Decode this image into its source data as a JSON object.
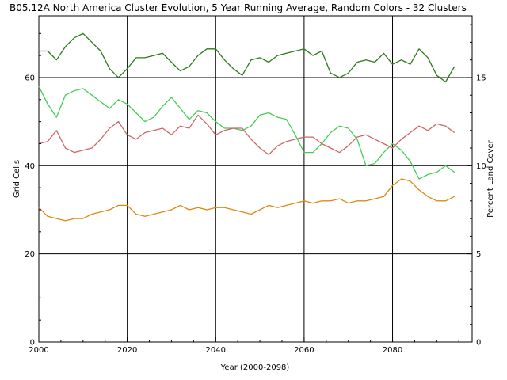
{
  "chart_data": {
    "type": "line",
    "title": "B05.12A North America Cluster Evolution, 5 Year Running Average, Random Colors - 32 Clusters",
    "xlabel": "Year (2000-2098)",
    "ylabel": "Grid Cells",
    "y2label": "Percent Land Cover",
    "xlim": [
      2000,
      2098
    ],
    "ylim": [
      0,
      74
    ],
    "y2lim": [
      0,
      18.5
    ],
    "xticks": [
      "2000",
      "2020",
      "2040",
      "2060",
      "2080"
    ],
    "yticks": [
      "0",
      "20",
      "40",
      "60"
    ],
    "y2ticks": [
      "0",
      "5",
      "10",
      "15"
    ],
    "grid": true,
    "colors": [
      "#2a7a1a",
      "#44cc55",
      "#cc6666",
      "#dd8811"
    ],
    "series": [
      {
        "color": "#2a7a1a",
        "x": [
          2000,
          2002,
          2004,
          2006,
          2008,
          2010,
          2012,
          2014,
          2016,
          2018,
          2020,
          2022,
          2024,
          2026,
          2028,
          2030,
          2032,
          2034,
          2036,
          2038,
          2040,
          2042,
          2044,
          2046,
          2048,
          2050,
          2052,
          2054,
          2056,
          2058,
          2060,
          2062,
          2064,
          2066,
          2068,
          2070,
          2072,
          2074,
          2076,
          2078,
          2080,
          2082,
          2084,
          2086,
          2088,
          2090,
          2092,
          2094
        ],
        "y": [
          66,
          66,
          64,
          67,
          69,
          70,
          68,
          66,
          62,
          60,
          62,
          64.5,
          64.5,
          65,
          65.5,
          63.5,
          61.5,
          62.5,
          65,
          66.5,
          66.5,
          64,
          62,
          60.5,
          64,
          64.5,
          63.5,
          65,
          65.5,
          66,
          66.5,
          65,
          66,
          61,
          60,
          61,
          63.5,
          64,
          63.5,
          65.5,
          63,
          64,
          63,
          66.5,
          64.5,
          60.5,
          59,
          62.5
        ]
      },
      {
        "color": "#44cc55",
        "x": [
          2000,
          2002,
          2004,
          2006,
          2008,
          2010,
          2012,
          2014,
          2016,
          2018,
          2020,
          2022,
          2024,
          2026,
          2028,
          2030,
          2032,
          2034,
          2036,
          2038,
          2040,
          2042,
          2044,
          2046,
          2048,
          2050,
          2052,
          2054,
          2056,
          2058,
          2060,
          2062,
          2064,
          2066,
          2068,
          2070,
          2072,
          2074,
          2076,
          2078,
          2080,
          2082,
          2084,
          2086,
          2088,
          2090,
          2092,
          2094
        ],
        "y": [
          58,
          54,
          51,
          56,
          57,
          57.5,
          56,
          54.5,
          53,
          55,
          54,
          52,
          50,
          51,
          53.5,
          55.5,
          53,
          50.5,
          52.5,
          52,
          50,
          48.5,
          48.5,
          48,
          49,
          51.5,
          52,
          51,
          50.5,
          47,
          43,
          43,
          45,
          47.5,
          49,
          48.5,
          46,
          40,
          40.5,
          43,
          45,
          43.5,
          41,
          37,
          38,
          38.5,
          40,
          38.5
        ]
      },
      {
        "color": "#cc6666",
        "x": [
          2000,
          2002,
          2004,
          2006,
          2008,
          2010,
          2012,
          2014,
          2016,
          2018,
          2020,
          2022,
          2024,
          2026,
          2028,
          2030,
          2032,
          2034,
          2036,
          2038,
          2040,
          2042,
          2044,
          2046,
          2048,
          2050,
          2052,
          2054,
          2056,
          2058,
          2060,
          2062,
          2064,
          2066,
          2068,
          2070,
          2072,
          2074,
          2076,
          2078,
          2080,
          2082,
          2084,
          2086,
          2088,
          2090,
          2092,
          2094
        ],
        "y": [
          45,
          45.5,
          48,
          44,
          43,
          43.5,
          44,
          46,
          48.5,
          50,
          47,
          46,
          47.5,
          48,
          48.5,
          47,
          49,
          48.5,
          51.5,
          49.5,
          47,
          48,
          48.5,
          48.5,
          46,
          44,
          42.5,
          44.5,
          45.5,
          46,
          46.5,
          46.5,
          45,
          44,
          43,
          44.5,
          46.5,
          47,
          46,
          45,
          44,
          46,
          47.5,
          49,
          48,
          49.5,
          49,
          47.5
        ]
      },
      {
        "color": "#dd8811",
        "x": [
          2000,
          2002,
          2004,
          2006,
          2008,
          2010,
          2012,
          2014,
          2016,
          2018,
          2020,
          2022,
          2024,
          2026,
          2028,
          2030,
          2032,
          2034,
          2036,
          2038,
          2040,
          2042,
          2044,
          2046,
          2048,
          2050,
          2052,
          2054,
          2056,
          2058,
          2060,
          2062,
          2064,
          2066,
          2068,
          2070,
          2072,
          2074,
          2076,
          2078,
          2080,
          2082,
          2084,
          2086,
          2088,
          2090,
          2092,
          2094
        ],
        "y": [
          30.5,
          28.5,
          28,
          27.5,
          28,
          28,
          29,
          29.5,
          30,
          31,
          31,
          29,
          28.5,
          29,
          29.5,
          30,
          31,
          30,
          30.5,
          30,
          30.5,
          30.5,
          30,
          29.5,
          29,
          30,
          31,
          30.5,
          31,
          31.5,
          32,
          31.5,
          32,
          32,
          32.5,
          31.5,
          32,
          32,
          32.5,
          33,
          35.5,
          37,
          36.5,
          34.5,
          33,
          32,
          32,
          33
        ]
      }
    ]
  }
}
